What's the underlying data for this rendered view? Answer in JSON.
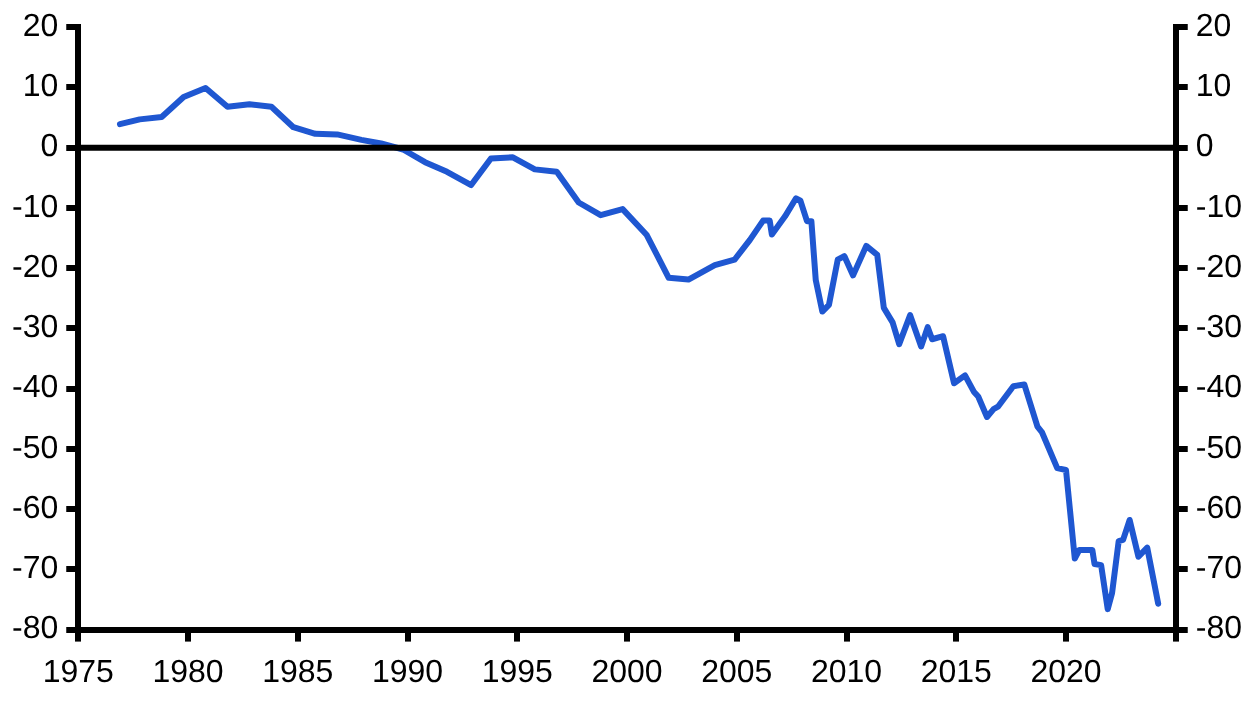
{
  "chart_data": {
    "type": "line",
    "xlim": [
      1975,
      2025
    ],
    "xticks": [
      1975,
      1980,
      1985,
      1990,
      1995,
      2000,
      2005,
      2010,
      2015,
      2020,
      {
        "value": 2025,
        "label": null
      }
    ],
    "ylim": [
      -80,
      20
    ],
    "yticks": [
      -80,
      -70,
      -60,
      -50,
      -40,
      -30,
      -20,
      -10,
      0,
      10,
      20
    ],
    "y2lim": [
      -80,
      20
    ],
    "y2ticks": [
      -80,
      -70,
      -60,
      -50,
      -40,
      -30,
      -20,
      -10,
      0,
      10,
      20
    ],
    "grid": false,
    "legend": false,
    "marker": "none",
    "line_style": "solid",
    "ref_lines": [
      {
        "axis": "y",
        "value": 0,
        "color": "#000000"
      }
    ],
    "series": [
      {
        "color": "#1f57d1",
        "x": [
          1976.9,
          1977.8,
          1978.8,
          1979.8,
          1980.8,
          1981.8,
          1982.8,
          1983.8,
          1984.8,
          1985.8,
          1986.8,
          1987.9,
          1988.8,
          1989.8,
          1990.8,
          1991.8,
          1992.9,
          1993.8,
          1994.8,
          1995.8,
          1996.8,
          1997.8,
          1998.8,
          1999.8,
          2000.9,
          2001.9,
          2002.8,
          2004,
          2004.9,
          2005.6,
          2006.2,
          2006.5,
          2006.6,
          2007.2,
          2007.7,
          2007.9,
          2008.2,
          2008.4,
          2008.6,
          2008.9,
          2009.2,
          2009.6,
          2009.9,
          2010.3,
          2010.9,
          2011.4,
          2011.7,
          2012.1,
          2012.4,
          2012.9,
          2013.4,
          2013.7,
          2013.9,
          2014.4,
          2014.9,
          2015.4,
          2015.8,
          2016,
          2016.4,
          2016.7,
          2016.9,
          2017.6,
          2018.1,
          2018.7,
          2018.9,
          2019.6,
          2020,
          2020.4,
          2020.6,
          2021.2,
          2021.3,
          2021.6,
          2021.9,
          2022.1,
          2022.4,
          2022.6,
          2022.9,
          2023.3,
          2023.7,
          2024.2
        ],
        "values": [
          3.9,
          4.7,
          5.1,
          8.4,
          9.9,
          6.8,
          7.2,
          6.8,
          3.4,
          2.3,
          2.2,
          1.3,
          0.7,
          -0.3,
          -2.4,
          -4,
          -6.2,
          -1.8,
          -1.6,
          -3.6,
          -4,
          -9.1,
          -11.2,
          -10.2,
          -14.5,
          -21.6,
          -21.9,
          -19.5,
          -18.6,
          -15.3,
          -12.1,
          -12.1,
          -14.4,
          -11.4,
          -8.4,
          -8.8,
          -12.2,
          -12.2,
          -22,
          -27.2,
          -26.1,
          -18.6,
          -18,
          -21.2,
          -16.3,
          -17.8,
          -26.6,
          -29,
          -32.6,
          -27.8,
          -33,
          -29.8,
          -31.8,
          -31.3,
          -39.1,
          -37.8,
          -40.5,
          -41.3,
          -44.7,
          -43.4,
          -43,
          -39.6,
          -39.3,
          -46.3,
          -47.2,
          -53.2,
          -53.5,
          -68.2,
          -66.8,
          -66.8,
          -69.1,
          -69.3,
          -76.6,
          -73.9,
          -65.3,
          -65.1,
          -61.8,
          -67.9,
          -66.4,
          -75.7
        ]
      }
    ]
  }
}
